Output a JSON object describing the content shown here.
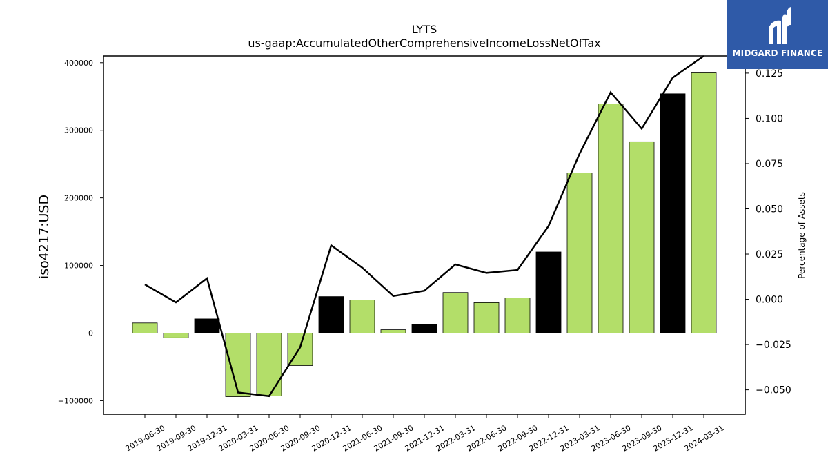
{
  "logo": {
    "text": "MIDGARD FINANCE",
    "icon": "mf-monogram-icon",
    "background": "#2f5aa8"
  },
  "chart_data": {
    "type": "bar",
    "title": "LYTS",
    "subtitle": "us-gaap:AccumulatedOtherComprehensiveIncomeLossNetOfTax",
    "ylabel": "iso4217:USD",
    "y2label": "Percentage of Assets",
    "ylim": [
      -120000,
      410000
    ],
    "y2lim": [
      -0.0635,
      0.1345
    ],
    "yticks": [
      -100000,
      0,
      100000,
      200000,
      300000,
      400000
    ],
    "ytick_labels": [
      "−100000",
      "0",
      "100000",
      "200000",
      "300000",
      "400000"
    ],
    "y2ticks": [
      -0.05,
      -0.025,
      0.0,
      0.025,
      0.05,
      0.075,
      0.1,
      0.125
    ],
    "y2tick_labels": [
      "−0.050",
      "−0.025",
      "0.000",
      "0.025",
      "0.050",
      "0.075",
      "0.100",
      "0.125"
    ],
    "categories": [
      "2019-06-30",
      "2019-09-30",
      "2019-12-31",
      "2020-03-31",
      "2020-06-30",
      "2020-09-30",
      "2020-12-31",
      "2021-06-30",
      "2021-09-30",
      "2021-12-31",
      "2022-03-31",
      "2022-06-30",
      "2022-09-30",
      "2022-12-31",
      "2023-03-31",
      "2023-06-30",
      "2023-09-30",
      "2023-12-31",
      "2024-03-31"
    ],
    "series": [
      {
        "type": "bar",
        "values": [
          15000,
          -7000,
          21000,
          -94000,
          -93000,
          -48000,
          54000,
          49000,
          5000,
          13000,
          60000,
          45000,
          52000,
          120000,
          237000,
          339000,
          283000,
          354000,
          385000
        ],
        "highlight": [
          false,
          false,
          true,
          false,
          false,
          false,
          true,
          false,
          false,
          true,
          false,
          false,
          false,
          true,
          false,
          false,
          false,
          true,
          false
        ],
        "color": "#b3de69",
        "highlight_color": "#000000"
      },
      {
        "type": "line",
        "axis": "right",
        "values": [
          0.0082,
          -0.0017,
          0.0116,
          -0.0515,
          -0.0535,
          -0.0265,
          0.0298,
          0.0175,
          0.0018,
          0.0047,
          0.0193,
          0.0146,
          0.0162,
          0.0405,
          0.0805,
          0.1144,
          0.0943,
          0.1225,
          0.1345
        ],
        "color": "#000000"
      }
    ],
    "grid": false
  }
}
